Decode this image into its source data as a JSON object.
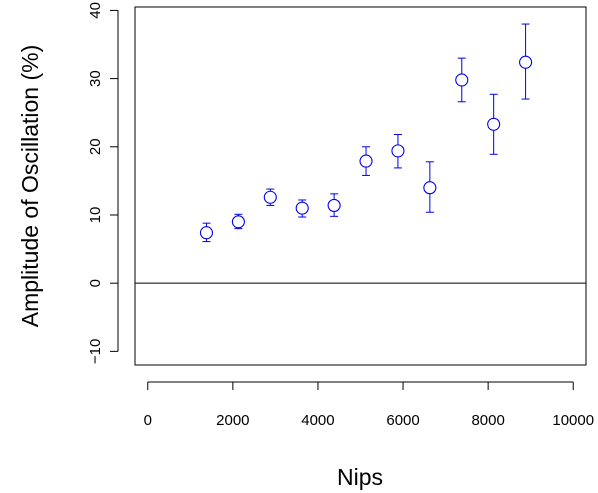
{
  "chart_data": {
    "type": "scatter",
    "xlabel": "Nips",
    "ylabel": "Amplitude of Oscillation (%)",
    "xlim": [
      -300,
      10300
    ],
    "ylim": [
      -12,
      40.5
    ],
    "x_ticks": [
      0,
      2000,
      4000,
      6000,
      8000,
      10000
    ],
    "y_ticks": [
      -10,
      0,
      10,
      20,
      30,
      40
    ],
    "x_tick_labels": [
      "0",
      "2000",
      "4000",
      "6000",
      "8000",
      "10000"
    ],
    "y_tick_labels": [
      "−10",
      "0",
      "10",
      "20",
      "30",
      "40"
    ],
    "reference_line_y": 0,
    "grid": false,
    "marker_color": "#0000ee",
    "line_color": "#000000",
    "series": [
      {
        "marker": "open-circle",
        "points": [
          {
            "x": 1380,
            "y": 7.4,
            "ylow": 6.1,
            "yhigh": 8.8
          },
          {
            "x": 2130,
            "y": 9.0,
            "ylow": 8.0,
            "yhigh": 10.1
          },
          {
            "x": 2880,
            "y": 12.6,
            "ylow": 11.4,
            "yhigh": 13.8
          },
          {
            "x": 3630,
            "y": 11.0,
            "ylow": 9.7,
            "yhigh": 12.2
          },
          {
            "x": 4380,
            "y": 11.4,
            "ylow": 9.8,
            "yhigh": 13.1
          },
          {
            "x": 5130,
            "y": 17.9,
            "ylow": 15.8,
            "yhigh": 20.0
          },
          {
            "x": 5880,
            "y": 19.4,
            "ylow": 16.9,
            "yhigh": 21.8
          },
          {
            "x": 6630,
            "y": 14.0,
            "ylow": 10.4,
            "yhigh": 17.8
          },
          {
            "x": 7380,
            "y": 29.8,
            "ylow": 26.6,
            "yhigh": 33.0
          },
          {
            "x": 8130,
            "y": 23.3,
            "ylow": 18.9,
            "yhigh": 27.7
          },
          {
            "x": 8880,
            "y": 32.4,
            "ylow": 27.0,
            "yhigh": 38.0
          }
        ]
      }
    ]
  }
}
